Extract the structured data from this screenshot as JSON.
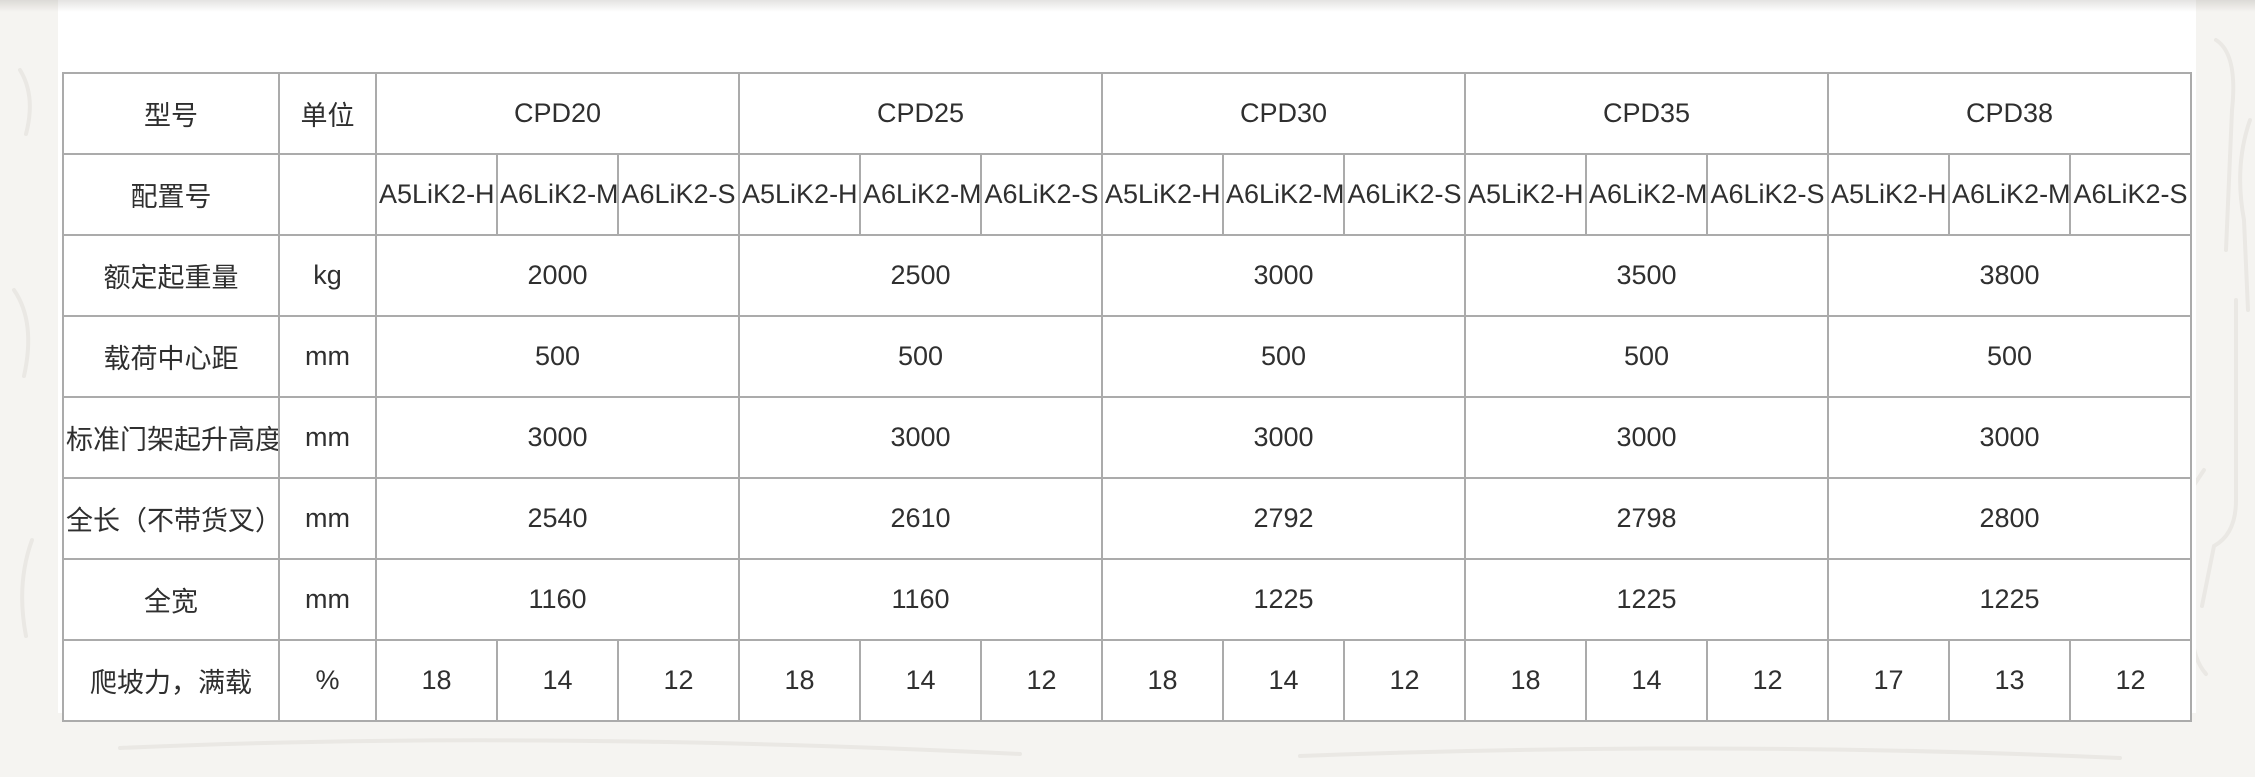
{
  "page": {
    "bg_color": "#f5f4f1",
    "panel_color": "#ffffff",
    "border_color": "#ababab",
    "text_color": "#2f2f2f"
  },
  "table": {
    "header_row": {
      "model_label": "型号",
      "unit_label": "单位",
      "models": [
        "CPD20",
        "CPD25",
        "CPD30",
        "CPD35",
        "CPD38"
      ]
    },
    "config_row": {
      "label": "配置号",
      "unit": "",
      "configs": [
        "A5LiK2-H",
        "A6LiK2-M",
        "A6LiK2-S"
      ]
    },
    "rows": [
      {
        "label": "额定起重量",
        "unit": "kg",
        "values": [
          "2000",
          "2500",
          "3000",
          "3500",
          "3800"
        ]
      },
      {
        "label": "载荷中心距",
        "unit": "mm",
        "values": [
          "500",
          "500",
          "500",
          "500",
          "500"
        ]
      },
      {
        "label": "标准门架起升高度",
        "unit": "mm",
        "values": [
          "3000",
          "3000",
          "3000",
          "3000",
          "3000"
        ]
      },
      {
        "label": "全长（不带货叉）",
        "unit": "mm",
        "values": [
          "2540",
          "2610",
          "2792",
          "2798",
          "2800"
        ]
      },
      {
        "label": "全宽",
        "unit": "mm",
        "values": [
          "1160",
          "1160",
          "1225",
          "1225",
          "1225"
        ]
      },
      {
        "label": "爬坡力，满载",
        "unit": "%",
        "values": [
          [
            "18",
            "14",
            "12"
          ],
          [
            "18",
            "14",
            "12"
          ],
          [
            "18",
            "14",
            "12"
          ],
          [
            "18",
            "14",
            "12"
          ],
          [
            "17",
            "13",
            "12"
          ]
        ]
      }
    ]
  }
}
